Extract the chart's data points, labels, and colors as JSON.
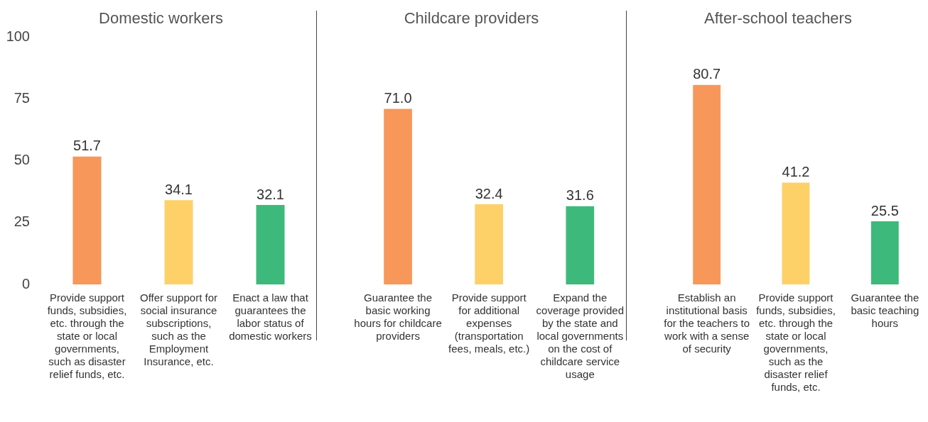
{
  "chart_data": [
    {
      "type": "bar",
      "title": "Domestic workers",
      "categories": [
        "Provide support funds, subsidies, etc. through the state or local governments, such as disaster relief funds, etc.",
        "Offer support for social insurance subscriptions, such as the Employment Insurance, etc.",
        "Enact a law that guarantees the labor status of domestic workers"
      ],
      "values": [
        51.7,
        34.1,
        32.1
      ],
      "value_labels": [
        "51.7",
        "34.1",
        "32.1"
      ],
      "colors": [
        "#f7975a",
        "#fdd068",
        "#3dba7b"
      ],
      "ylim": [
        0,
        100
      ],
      "yticks": [
        0,
        25,
        50,
        75,
        100
      ]
    },
    {
      "type": "bar",
      "title": "Childcare providers",
      "categories": [
        "Guarantee the basic working hours for childcare providers",
        "Provide support for additional expenses (transportation fees, meals, etc.)",
        "Expand the coverage provided by the state and local governments on the cost of childcare service usage"
      ],
      "values": [
        71.0,
        32.4,
        31.6
      ],
      "value_labels": [
        "71.0",
        "32.4",
        "31.6"
      ],
      "colors": [
        "#f7975a",
        "#fdd068",
        "#3dba7b"
      ],
      "ylim": [
        0,
        100
      ],
      "yticks": [
        0,
        25,
        50,
        75,
        100
      ],
      "tick_labels": "x"
    },
    {
      "type": "bar",
      "title": "After-school teachers",
      "categories": [
        "Establish an institutional basis for the teachers to work with a sense of security",
        "Provide support funds, subsidies, etc. through the state or local governments, such as the disaster relief funds, etc.",
        "Guarantee the basic teaching hours"
      ],
      "values": [
        80.7,
        41.2,
        25.5
      ],
      "value_labels": [
        "80.7",
        "41.2",
        "25.5"
      ],
      "colors": [
        "#f7975a",
        "#fdd068",
        "#3dba7b"
      ],
      "ylim": [
        0,
        100
      ],
      "yticks": [
        0,
        25,
        50,
        75,
        100
      ],
      "tick_labels": "x"
    }
  ]
}
